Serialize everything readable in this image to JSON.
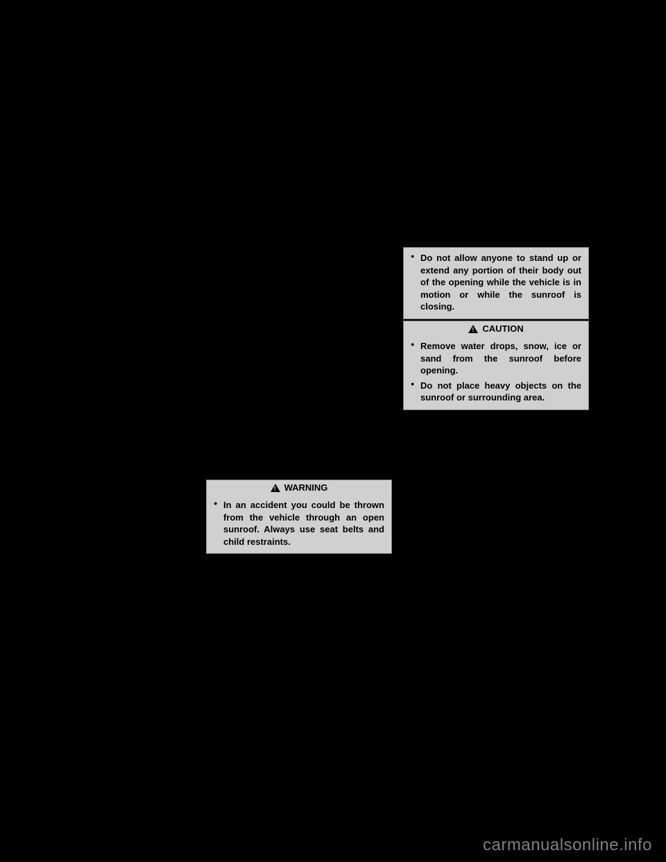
{
  "figure": {
    "present": true
  },
  "warning": {
    "header_label": "WARNING",
    "items": [
      "In an accident you could be thrown from the vehicle through an open sunroof. Always use seat belts and child restraints."
    ]
  },
  "continuation": {
    "items": [
      "Do not allow anyone to stand up or extend any portion of their body out of the opening while the vehicle is in motion or while the sunroof is closing."
    ]
  },
  "caution": {
    "header_label": "CAUTION",
    "items": [
      "Remove water drops, snow, ice or sand from the sunroof before opening.",
      "Do not place heavy objects on the sunroof or surrounding area."
    ]
  },
  "watermark": {
    "text": "carmanualsonline.info"
  },
  "colors": {
    "background": "#000000",
    "box_bg": "#d0d0d0",
    "box_border": "#808080",
    "watermark_color": "#808080"
  }
}
